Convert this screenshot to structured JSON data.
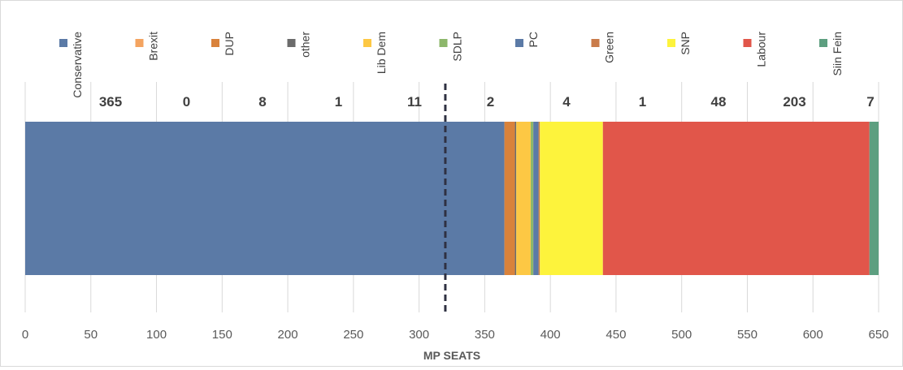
{
  "chart_data": {
    "type": "bar",
    "orientation": "horizontal",
    "stacked": true,
    "title": "",
    "xlabel": "MP SEATS",
    "ylabel": "",
    "xlim": [
      0,
      650
    ],
    "x_ticks": [
      "0",
      "50",
      "100",
      "150",
      "200",
      "250",
      "300",
      "350",
      "400",
      "450",
      "500",
      "550",
      "600",
      "650"
    ],
    "grid": "vertical",
    "legend_placement": "top",
    "reference_line": {
      "value": 320,
      "style": "dashed",
      "color": "#2f3142"
    },
    "series": [
      {
        "name": "Conservative",
        "value": 365,
        "label": "365",
        "color": "#5b7aa6"
      },
      {
        "name": "Brexit",
        "value": 0,
        "label": "0",
        "color": "#f4a460"
      },
      {
        "name": "DUP",
        "value": 8,
        "label": "8",
        "color": "#d9823b"
      },
      {
        "name": "other",
        "value": 1,
        "label": "1",
        "color": "#6b6b6b"
      },
      {
        "name": "Lib Dem",
        "value": 11,
        "label": "11",
        "color": "#fdc844"
      },
      {
        "name": "SDLP",
        "value": 2,
        "label": "2",
        "color": "#8db76b"
      },
      {
        "name": "PC",
        "value": 4,
        "label": "4",
        "color": "#5b7aa6"
      },
      {
        "name": "Green",
        "value": 1,
        "label": "1",
        "color": "#c97b4a"
      },
      {
        "name": "SNP",
        "value": 48,
        "label": "48",
        "color": "#fdf33c"
      },
      {
        "name": "Labour",
        "value": 203,
        "label": "203",
        "color": "#e1564a"
      },
      {
        "name": "Siin Fein",
        "value": 7,
        "label": "7",
        "color": "#5d9f80"
      }
    ]
  }
}
